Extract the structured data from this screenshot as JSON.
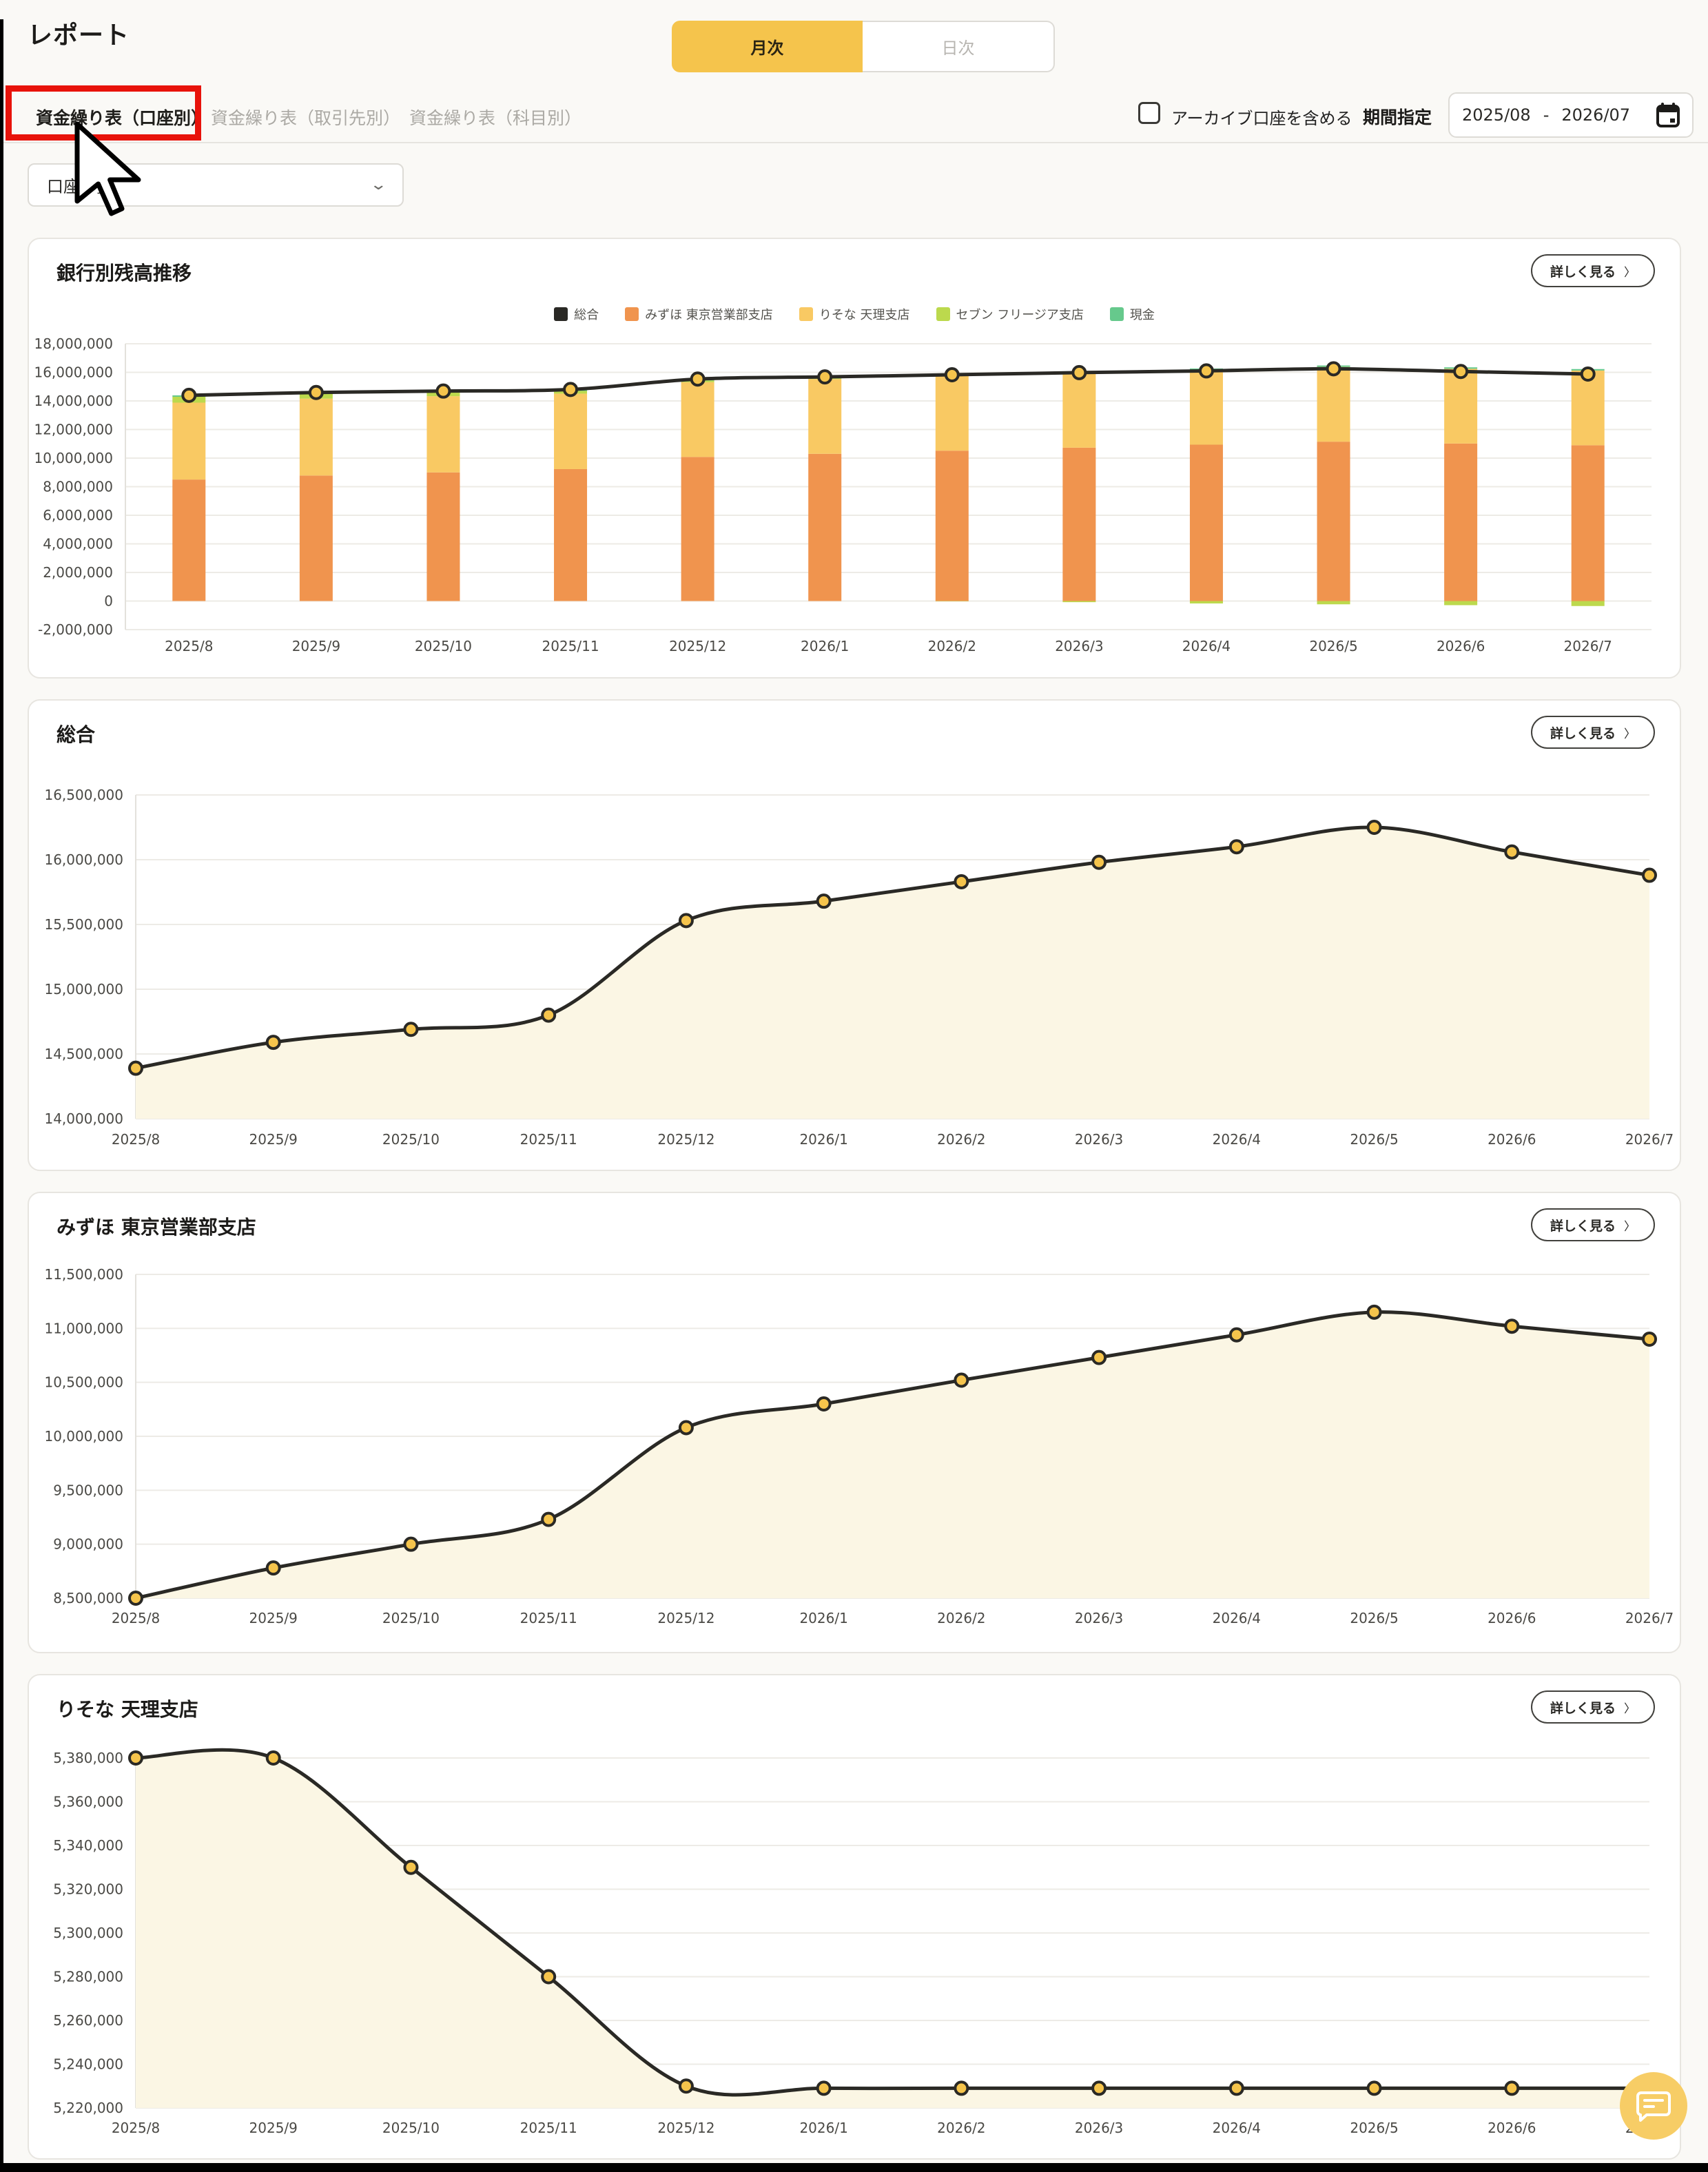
{
  "page": {
    "title": "レポート"
  },
  "period_tabs": [
    {
      "label": "月次",
      "active": true
    },
    {
      "label": "日次",
      "active": false
    }
  ],
  "subtabs": [
    {
      "label": "資金繰り表（口座別）",
      "active": true,
      "highlighted": true
    },
    {
      "label": "資金繰り表（取引先別）",
      "active": false
    },
    {
      "label": "資金繰り表（科目別）",
      "active": false
    }
  ],
  "filters": {
    "archive_checkbox_label": "アーカイブ口座を含める",
    "archive_checked": false,
    "period_label": "期間指定",
    "period_start": "2025/08",
    "period_separator": "-",
    "period_end": "2026/07"
  },
  "account_dropdown": {
    "value": "口座一覧"
  },
  "detail_button_label": "詳しく見る",
  "detail_button_chevron": "〉",
  "icons": {
    "calendar": "calendar-icon",
    "dropdown_chevron": "chevron-down-icon",
    "detail_chevron": "chevron-right-icon",
    "fab": "chat-bubble-icon",
    "cursor": "mouse-pointer"
  },
  "annotation": {
    "type": "highlight-box",
    "target": "資金繰り表（口座別）",
    "box_color": "#E8130B"
  },
  "colors": {
    "accent_yellow": "#F5C44C",
    "bar_orange": "#F0944E",
    "bar_yellow": "#F9C963",
    "bar_lime": "#BCD94D",
    "bar_green": "#66C98C",
    "line_dark": "#2A2925",
    "area_fill": "#FBF6E4",
    "fab_yellow": "#F7CD66",
    "annotation_red": "#E8130B"
  },
  "chart_data": [
    {
      "type": "bar",
      "title": "銀行別残高推移",
      "categories": [
        "2025/8",
        "2025/9",
        "2025/10",
        "2025/11",
        "2025/12",
        "2026/1",
        "2026/2",
        "2026/3",
        "2026/4",
        "2026/5",
        "2026/6",
        "2026/7"
      ],
      "series": [
        {
          "name": "総合",
          "type": "line",
          "color": "#2A2925",
          "values": [
            14390000,
            14590000,
            14690000,
            14800000,
            15530000,
            15680000,
            15830000,
            15980000,
            16100000,
            16250000,
            16060000,
            15880000
          ]
        },
        {
          "name": "みずほ 東京営業部支店",
          "type": "bar",
          "color": "#F0944E",
          "values": [
            8500000,
            8780000,
            9000000,
            9230000,
            10080000,
            10300000,
            10520000,
            10730000,
            10940000,
            11150000,
            11020000,
            10900000
          ]
        },
        {
          "name": "りそな 天理支店",
          "type": "bar",
          "color": "#F9C963",
          "values": [
            5380000,
            5380000,
            5330000,
            5280000,
            5230000,
            5229000,
            5229000,
            5229000,
            5229000,
            5229000,
            5229000,
            5229000
          ]
        },
        {
          "name": "セブン フリージア支店",
          "type": "bar",
          "color": "#BCD94D",
          "values": [
            410000,
            330000,
            260000,
            190000,
            120000,
            51000,
            -19000,
            -79000,
            -169000,
            -229000,
            -289000,
            -349000
          ]
        },
        {
          "name": "現金",
          "type": "bar",
          "color": "#66C98C",
          "values": [
            100000,
            100000,
            100000,
            100000,
            100000,
            100000,
            100000,
            100000,
            100000,
            100000,
            100000,
            100000
          ]
        }
      ],
      "ylim": [
        -2000000,
        18000000
      ],
      "ytick_step": 2000000,
      "grid": true,
      "legend_position": "top"
    },
    {
      "type": "area",
      "title": "総合",
      "categories": [
        "2025/8",
        "2025/9",
        "2025/10",
        "2025/11",
        "2025/12",
        "2026/1",
        "2026/2",
        "2026/3",
        "2026/4",
        "2026/5",
        "2026/6",
        "2026/7"
      ],
      "values": [
        14390000,
        14590000,
        14690000,
        14800000,
        15530000,
        15680000,
        15830000,
        15980000,
        16100000,
        16250000,
        16060000,
        15880000
      ],
      "ylim": [
        14000000,
        16500000
      ],
      "ytick_step": 500000,
      "grid": true
    },
    {
      "type": "area",
      "title": "みずほ 東京営業部支店",
      "categories": [
        "2025/8",
        "2025/9",
        "2025/10",
        "2025/11",
        "2025/12",
        "2026/1",
        "2026/2",
        "2026/3",
        "2026/4",
        "2026/5",
        "2026/6",
        "2026/7"
      ],
      "values": [
        8500000,
        8780000,
        9000000,
        9230000,
        10080000,
        10300000,
        10520000,
        10730000,
        10940000,
        11150000,
        11020000,
        10900000
      ],
      "ylim": [
        8500000,
        11500000
      ],
      "ytick_step": 500000,
      "grid": true
    },
    {
      "type": "area",
      "title": "りそな 天理支店",
      "categories": [
        "2025/8",
        "2025/9",
        "2025/10",
        "2025/11",
        "2025/12",
        "2026/1",
        "2026/2",
        "2026/3",
        "2026/4",
        "2026/5",
        "2026/6",
        "2026/7"
      ],
      "values": [
        5380000,
        5380000,
        5330000,
        5280000,
        5230000,
        5229000,
        5229000,
        5229000,
        5229000,
        5229000,
        5229000,
        5229000
      ],
      "ylim": [
        5220000,
        5380000
      ],
      "ytick_step": 20000,
      "grid": true
    }
  ]
}
